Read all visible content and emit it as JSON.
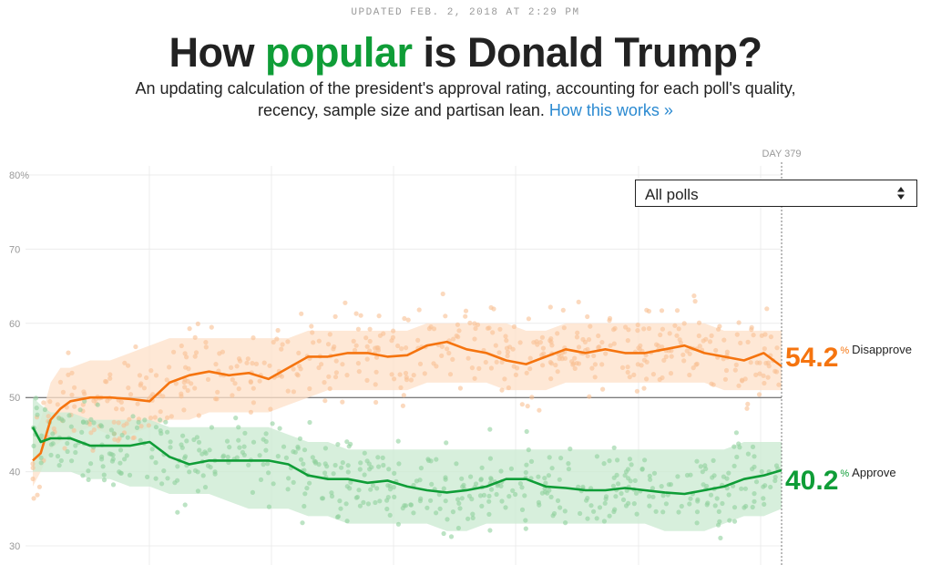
{
  "header": {
    "updated": "UPDATED FEB. 2, 2018 AT 2:29 PM",
    "title_pre": "How ",
    "title_highlight": "popular",
    "title_post": " is Donald Trump?",
    "subtitle_line1": "An updating calculation of the president's approval rating, accounting for each poll's quality,",
    "subtitle_line2": "recency, sample size and partisan lean. ",
    "how_link": "How this works »"
  },
  "filter": {
    "selected": "All polls",
    "icon": "up-down-caret-icon"
  },
  "day_marker": {
    "label": "DAY 379",
    "day": 379
  },
  "colors": {
    "approve": "#0f9d37",
    "disapprove": "#f5740f",
    "approve_band": "#cdebd3",
    "disapprove_band": "#fde0c8",
    "approve_dot": "#8fd19c",
    "disapprove_dot": "#f9bf93",
    "title_accent": "#0f9d37",
    "link": "#2b8ad1"
  },
  "readouts": {
    "disapprove": {
      "value": "54.2",
      "unit": "%",
      "label": "Disapprove"
    },
    "approve": {
      "value": "40.2",
      "unit": "%",
      "label": "Approve"
    }
  },
  "chart_data": {
    "type": "line",
    "title": "How popular is Donald Trump?",
    "xlabel": "",
    "ylabel": "",
    "x_unit": "day of presidency",
    "xlim": [
      1,
      388
    ],
    "ylim": [
      28,
      81
    ],
    "yticks": [
      30,
      40,
      50,
      60,
      70,
      80
    ],
    "ytick_labels": [
      "30",
      "40",
      "50",
      "60",
      "70",
      "80%"
    ],
    "reference_line": 50,
    "grid": true,
    "x": [
      1,
      5,
      10,
      15,
      20,
      30,
      40,
      50,
      60,
      70,
      80,
      90,
      100,
      110,
      120,
      130,
      140,
      150,
      160,
      170,
      180,
      190,
      200,
      210,
      220,
      230,
      240,
      250,
      260,
      270,
      280,
      290,
      300,
      310,
      320,
      330,
      340,
      350,
      360,
      370,
      379
    ],
    "series": [
      {
        "name": "Disapprove",
        "values": [
          41.5,
          42.5,
          47.0,
          48.5,
          49.5,
          50.0,
          50.0,
          49.8,
          49.5,
          52.0,
          53.0,
          53.5,
          53.0,
          53.3,
          52.5,
          54.0,
          55.5,
          55.5,
          56.0,
          56.0,
          55.5,
          55.7,
          57.0,
          57.5,
          56.5,
          56.0,
          55.0,
          54.5,
          55.5,
          56.5,
          56.0,
          56.5,
          56.0,
          56.0,
          56.5,
          57.0,
          56.0,
          55.5,
          55.0,
          56.0,
          54.2
        ],
        "band_upper": [
          45,
          47,
          52,
          54,
          54,
          55,
          55,
          56,
          57,
          58,
          58,
          58,
          58,
          58,
          58,
          58,
          59,
          59,
          59,
          59,
          59,
          59,
          60,
          60,
          60,
          60,
          60,
          59,
          59,
          60,
          60,
          60,
          60,
          60,
          60,
          60,
          60,
          59,
          59,
          59,
          59
        ],
        "band_lower": [
          38,
          40,
          43,
          44,
          45,
          46,
          45,
          45,
          46,
          47,
          47,
          48,
          48,
          48,
          48,
          49,
          50,
          51,
          51,
          51,
          51,
          51,
          52,
          52,
          52,
          52,
          51,
          51,
          51,
          52,
          52,
          52,
          52,
          52,
          52,
          52,
          52,
          51,
          51,
          51,
          51
        ]
      },
      {
        "name": "Approve",
        "values": [
          46.0,
          44.0,
          44.5,
          44.5,
          44.5,
          43.5,
          43.5,
          43.5,
          44.0,
          42.0,
          41.0,
          41.5,
          41.5,
          41.5,
          41.5,
          41.0,
          39.5,
          39.0,
          39.0,
          38.5,
          38.8,
          38.0,
          37.5,
          37.2,
          37.5,
          38.0,
          39.0,
          39.0,
          38.0,
          37.8,
          37.5,
          37.5,
          37.8,
          37.5,
          37.2,
          37.0,
          37.5,
          38.0,
          39.0,
          39.5,
          40.2
        ],
        "band_upper": [
          50,
          49,
          48,
          48,
          48,
          47,
          47,
          47,
          47,
          46,
          46,
          46,
          46,
          46,
          46,
          45,
          44,
          44,
          43,
          43,
          43,
          43,
          43,
          43,
          43,
          43,
          43,
          43,
          43,
          43,
          43,
          43,
          43,
          43,
          43,
          43,
          43,
          43,
          44,
          44,
          44
        ],
        "band_lower": [
          40,
          40,
          40,
          40,
          40,
          39,
          39,
          38,
          38,
          37,
          37,
          37,
          36,
          35,
          35,
          35,
          34,
          34,
          33,
          33,
          33,
          33,
          33,
          32,
          32,
          33,
          33,
          33,
          33,
          33,
          33,
          33,
          33,
          33,
          32,
          32,
          32,
          33,
          34,
          34,
          35
        ]
      }
    ]
  }
}
